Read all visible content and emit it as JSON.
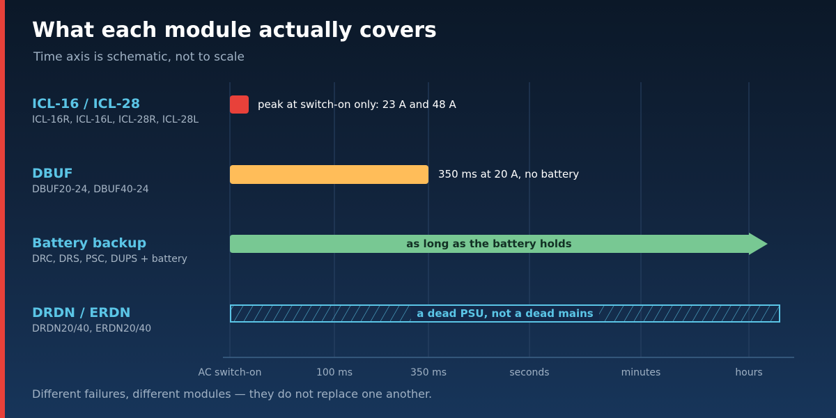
{
  "header": {
    "title": "What each module actually covers",
    "subtitle": "Time axis is schematic, not to scale"
  },
  "rows": [
    {
      "title": "ICL-16 / ICL-28",
      "subtitle": "ICL-16R, ICL-16L, ICL-28R, ICL-28L",
      "bar_label": "peak at switch-on only: 23 A and 48 A",
      "bar_style": "spike",
      "end_tick": "AC switch-on",
      "color": "#e8413a"
    },
    {
      "title": "DBUF",
      "subtitle": "DBUF20-24, DBUF40-24",
      "bar_label": "350 ms at 20 A, no battery",
      "bar_style": "solid",
      "end_tick": "350 ms",
      "color": "#ffbd59"
    },
    {
      "title": "Battery backup",
      "subtitle": "DRC, DRS, PSC, DUPS + battery",
      "bar_label": "as long as the battery holds",
      "bar_style": "arrow",
      "end_tick": "hours",
      "color": "#78c893"
    },
    {
      "title": "DRDN / ERDN",
      "subtitle": "DRDN20/40, ERDN20/40",
      "bar_label": "a dead PSU, not a dead mains",
      "bar_style": "hatched",
      "end_tick": "beyond hours",
      "color": "#5bc5e6"
    }
  ],
  "axis": {
    "ticks": [
      "AC switch-on",
      "100 ms",
      "350 ms",
      "seconds",
      "minutes",
      "hours"
    ]
  },
  "footer": "Different failures, different modules — they do not replace one another.",
  "colors": {
    "accent": "#e8413a",
    "title": "#ffffff",
    "row_title": "#5bc5e6",
    "muted": "#9fb1c4",
    "grid": "#2a4466",
    "axis": "#3f6287"
  }
}
